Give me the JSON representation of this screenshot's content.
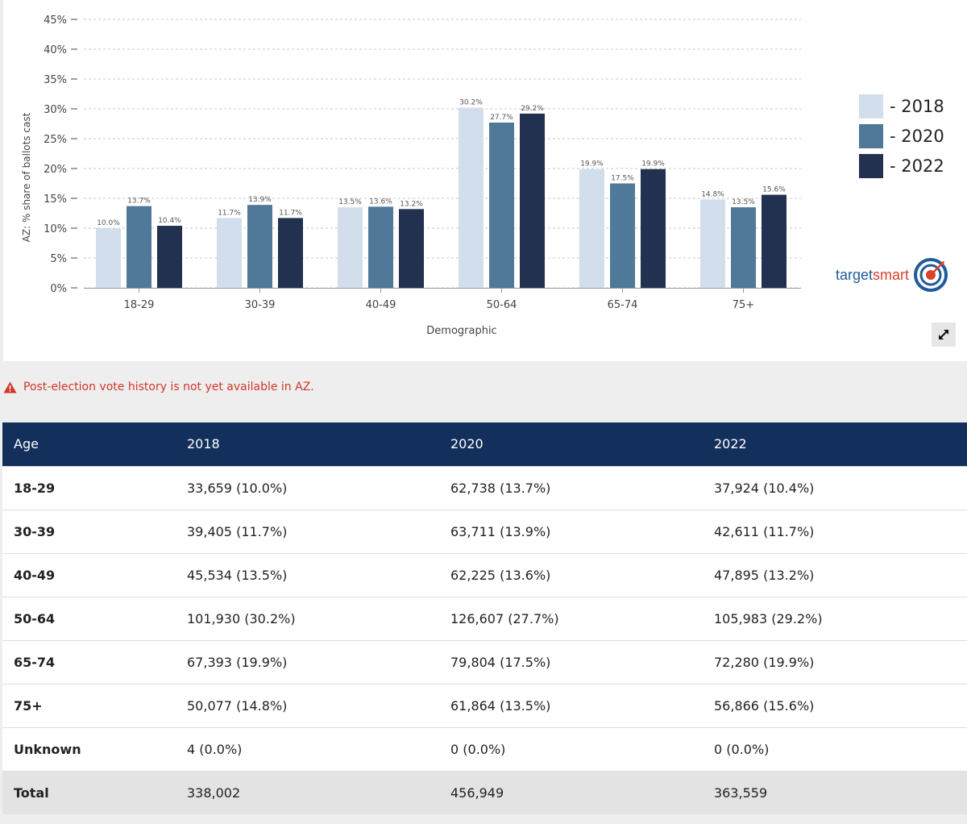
{
  "chart_data": {
    "type": "bar",
    "categories": [
      "18-29",
      "30-39",
      "40-49",
      "50-64",
      "65-74",
      "75+"
    ],
    "series": [
      {
        "name": "2018",
        "values": [
          10.0,
          11.7,
          13.5,
          30.2,
          19.9,
          14.8
        ],
        "labels": [
          "10.0%",
          "11.7%",
          "13.5%",
          "30.2%",
          "19.9%",
          "14.8%"
        ],
        "color": "#d3deec"
      },
      {
        "name": "2020",
        "values": [
          13.7,
          13.9,
          13.6,
          27.7,
          17.5,
          13.5
        ],
        "labels": [
          "13.7%",
          "13.9%",
          "13.6%",
          "27.7%",
          "17.5%",
          "13.5%"
        ],
        "color": "#4f7899"
      },
      {
        "name": "2022",
        "values": [
          10.4,
          11.7,
          13.2,
          29.2,
          19.9,
          15.6
        ],
        "labels": [
          "10.4%",
          "11.7%",
          "13.2%",
          "29.2%",
          "19.9%",
          "15.6%"
        ],
        "color": "#22314f"
      }
    ],
    "ylim": [
      0,
      45
    ],
    "yticks": [
      0,
      5,
      10,
      15,
      20,
      25,
      30,
      35,
      40,
      45
    ],
    "ytick_labels": [
      "0%",
      "5%",
      "10%",
      "15%",
      "20%",
      "25%",
      "30%",
      "35%",
      "40%",
      "45%"
    ],
    "xlabel": "Demographic",
    "ylabel": "AZ: % share of ballots cast",
    "grid": true,
    "legend": {
      "position": "right",
      "labels": [
        "- 2018",
        "- 2020",
        "- 2022"
      ]
    }
  },
  "brand": {
    "part1": "target",
    "part2": "smart",
    "icon": "target-bullseye-icon"
  },
  "expand_icon": "expand-arrows-icon",
  "notice": {
    "icon": "warning-triangle-icon",
    "text": "Post-election vote history is not yet available in AZ."
  },
  "table": {
    "headers": [
      "Age",
      "2018",
      "2020",
      "2022"
    ],
    "rows": [
      [
        "18-29",
        "33,659 (10.0%)",
        "62,738 (13.7%)",
        "37,924 (10.4%)"
      ],
      [
        "30-39",
        "39,405 (11.7%)",
        "63,711 (13.9%)",
        "42,611 (11.7%)"
      ],
      [
        "40-49",
        "45,534 (13.5%)",
        "62,225 (13.6%)",
        "47,895 (13.2%)"
      ],
      [
        "50-64",
        "101,930 (30.2%)",
        "126,607 (27.7%)",
        "105,983 (29.2%)"
      ],
      [
        "65-74",
        "67,393 (19.9%)",
        "79,804 (17.5%)",
        "72,280 (19.9%)"
      ],
      [
        "75+",
        "50,077 (14.8%)",
        "61,864 (13.5%)",
        "56,866 (15.6%)"
      ],
      [
        "Unknown",
        "4 (0.0%)",
        "0 (0.0%)",
        "0 (0.0%)"
      ],
      [
        "Total",
        "338,002",
        "456,949",
        "363,559"
      ]
    ]
  }
}
